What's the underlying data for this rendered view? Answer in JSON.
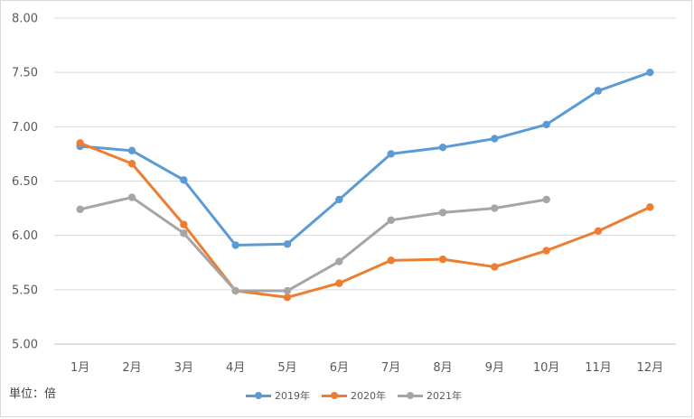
{
  "chart_data": {
    "type": "line",
    "categories": [
      "1月",
      "2月",
      "3月",
      "4月",
      "5月",
      "6月",
      "7月",
      "8月",
      "9月",
      "10月",
      "11月",
      "12月"
    ],
    "series": [
      {
        "name": "2019年",
        "color": "#5b9bd5",
        "values": [
          6.82,
          6.78,
          6.51,
          5.91,
          5.92,
          6.33,
          6.75,
          6.81,
          6.89,
          7.02,
          7.33,
          7.5
        ]
      },
      {
        "name": "2020年",
        "color": "#ed7d31",
        "values": [
          6.85,
          6.66,
          6.1,
          5.49,
          5.43,
          5.56,
          5.77,
          5.78,
          5.71,
          5.86,
          6.04,
          6.26
        ]
      },
      {
        "name": "2021年",
        "color": "#a5a5a5",
        "values": [
          6.24,
          6.35,
          6.02,
          5.49,
          5.49,
          5.76,
          6.14,
          6.21,
          6.25,
          6.33,
          null,
          null
        ]
      }
    ],
    "yticks": [
      "5.00",
      "5.50",
      "6.00",
      "6.50",
      "7.00",
      "7.50",
      "8.00"
    ],
    "ylim": [
      5.0,
      8.0
    ],
    "grid": true,
    "legend_position": "bottom",
    "unit_label": "単位：倍"
  }
}
